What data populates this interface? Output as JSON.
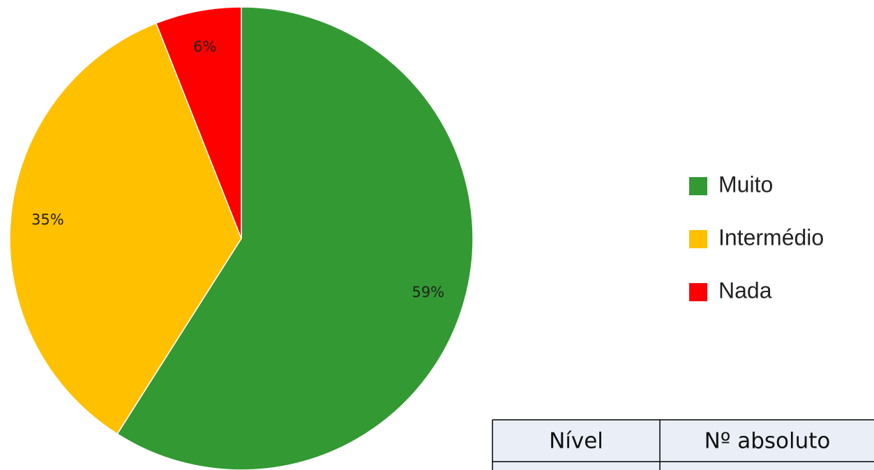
{
  "chart_data": {
    "type": "pie",
    "categories": [
      "Muito",
      "Intermédio",
      "Nada"
    ],
    "values": [
      59,
      35,
      6
    ],
    "value_labels": [
      "59%",
      "35%",
      "6%"
    ],
    "colors": [
      "#339933",
      "#ffc000",
      "#ff0000"
    ],
    "legend": "right"
  },
  "table": {
    "header": [
      "Nível",
      "Nº absoluto"
    ]
  }
}
